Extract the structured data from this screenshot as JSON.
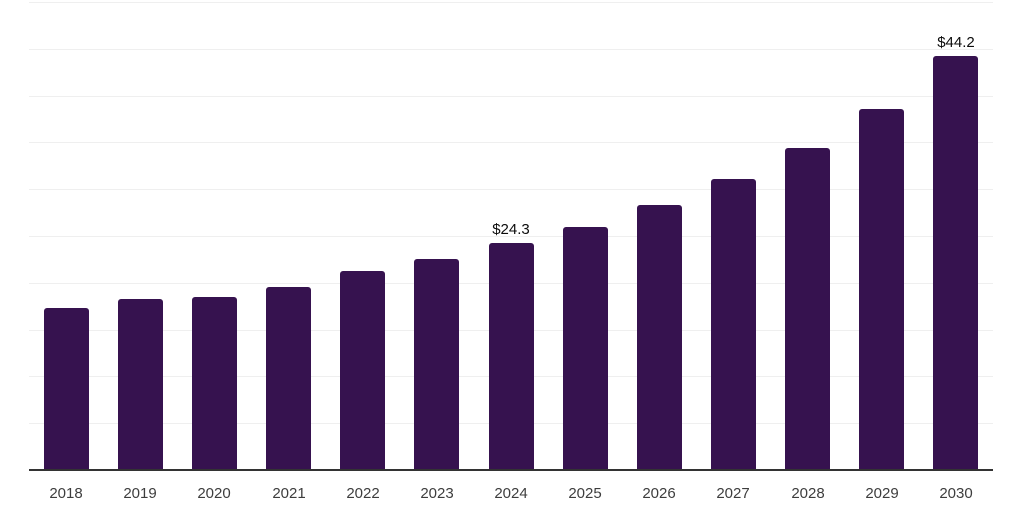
{
  "chart_data": {
    "type": "bar",
    "title": "",
    "xlabel": "",
    "ylabel": "",
    "categories": [
      "2018",
      "2019",
      "2020",
      "2021",
      "2022",
      "2023",
      "2024",
      "2025",
      "2026",
      "2027",
      "2028",
      "2029",
      "2030"
    ],
    "values": [
      17.3,
      18.3,
      18.5,
      19.6,
      21.3,
      22.5,
      24.3,
      26.0,
      28.3,
      31.1,
      34.4,
      38.6,
      44.2
    ],
    "data_labels": [
      "",
      "",
      "",
      "",
      "",
      "",
      "$24.3",
      "",
      "",
      "",
      "",
      "",
      "$44.2"
    ],
    "ylim": [
      0,
      50
    ],
    "grid_step": 5,
    "grid": "horizontal",
    "legend": "none",
    "y_axis_labels_visible": false,
    "colors": {
      "bar": "#36124F",
      "gridline": "#efefef",
      "axis_line": "#333333",
      "tick_label": "#3d3d3d",
      "value_label": "#0c0c0c",
      "background": "#ffffff"
    }
  }
}
